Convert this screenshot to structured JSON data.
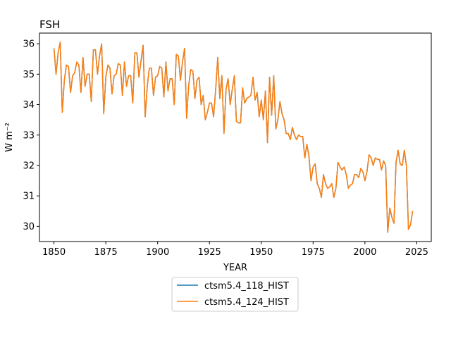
{
  "chart_data": {
    "type": "line",
    "title": "FSH",
    "xlabel": "YEAR",
    "ylabel": "W m⁻²",
    "xlim": [
      1843,
      2032
    ],
    "ylim": [
      29.5,
      36.35
    ],
    "xticks": [
      1850,
      1875,
      1900,
      1925,
      1950,
      1975,
      2000,
      2025
    ],
    "yticks": [
      30,
      31,
      32,
      33,
      34,
      35,
      36
    ],
    "grid": false,
    "legend_placement": "below",
    "x": [
      1850,
      1851,
      1852,
      1853,
      1854,
      1855,
      1856,
      1857,
      1858,
      1859,
      1860,
      1861,
      1862,
      1863,
      1864,
      1865,
      1866,
      1867,
      1868,
      1869,
      1870,
      1871,
      1872,
      1873,
      1874,
      1875,
      1876,
      1877,
      1878,
      1879,
      1880,
      1881,
      1882,
      1883,
      1884,
      1885,
      1886,
      1887,
      1888,
      1889,
      1890,
      1891,
      1892,
      1893,
      1894,
      1895,
      1896,
      1897,
      1898,
      1899,
      1900,
      1901,
      1902,
      1903,
      1904,
      1905,
      1906,
      1907,
      1908,
      1909,
      1910,
      1911,
      1912,
      1913,
      1914,
      1915,
      1916,
      1917,
      1918,
      1919,
      1920,
      1921,
      1922,
      1923,
      1924,
      1925,
      1926,
      1927,
      1928,
      1929,
      1930,
      1931,
      1932,
      1933,
      1934,
      1935,
      1936,
      1937,
      1938,
      1939,
      1940,
      1941,
      1942,
      1943,
      1944,
      1945,
      1946,
      1947,
      1948,
      1949,
      1950,
      1951,
      1952,
      1953,
      1954,
      1955,
      1956,
      1957,
      1958,
      1959,
      1960,
      1961,
      1962,
      1963,
      1964,
      1965,
      1966,
      1967,
      1968,
      1969,
      1970,
      1971,
      1972,
      1973,
      1974,
      1975,
      1976,
      1977,
      1978,
      1979,
      1980,
      1981,
      1982,
      1983,
      1984,
      1985,
      1986,
      1987,
      1988,
      1989,
      1990,
      1991,
      1992,
      1993,
      1994,
      1995,
      1996,
      1997,
      1998,
      1999,
      2000,
      2001,
      2002,
      2003,
      2004,
      2005,
      2006,
      2007,
      2008,
      2009,
      2010,
      2011,
      2012,
      2013,
      2014,
      2015,
      2016,
      2017,
      2018,
      2019,
      2020,
      2021,
      2022,
      2023
    ],
    "series": [
      {
        "name": "ctsm5.4_118_HIST",
        "color": "#1f77b4",
        "values": [
          35.85,
          35.0,
          35.7,
          36.05,
          33.75,
          34.8,
          35.3,
          35.25,
          34.4,
          34.95,
          35.05,
          35.4,
          35.3,
          34.4,
          35.55,
          34.6,
          35.0,
          35.0,
          34.1,
          35.8,
          35.8,
          35.0,
          35.6,
          36.0,
          33.7,
          34.9,
          35.3,
          35.2,
          34.35,
          34.95,
          35.0,
          35.35,
          35.3,
          34.3,
          35.4,
          34.6,
          34.95,
          34.95,
          34.05,
          35.7,
          35.7,
          34.9,
          35.45,
          35.95,
          33.6,
          34.6,
          35.2,
          35.2,
          34.3,
          34.9,
          34.95,
          35.25,
          35.2,
          34.25,
          35.4,
          34.45,
          34.85,
          34.85,
          34.0,
          35.65,
          35.6,
          34.8,
          35.4,
          35.85,
          33.55,
          34.65,
          35.15,
          35.1,
          34.2,
          34.8,
          34.9,
          34.0,
          34.3,
          33.5,
          33.75,
          34.05,
          34.05,
          33.6,
          34.5,
          35.55,
          34.2,
          34.95,
          33.05,
          34.5,
          34.85,
          34.0,
          34.5,
          34.95,
          33.45,
          33.4,
          33.4,
          34.55,
          34.05,
          34.2,
          34.25,
          34.3,
          34.9,
          34.15,
          34.4,
          33.6,
          34.15,
          33.5,
          34.45,
          32.75,
          34.9,
          33.65,
          34.95,
          33.2,
          33.5,
          34.1,
          33.7,
          33.5,
          33.05,
          33.05,
          32.85,
          33.25,
          33.0,
          32.85,
          33.0,
          32.95,
          32.95,
          32.25,
          32.7,
          32.3,
          31.5,
          31.95,
          32.05,
          31.4,
          31.25,
          30.95,
          31.7,
          31.4,
          31.25,
          31.3,
          31.4,
          30.95,
          31.25,
          32.1,
          31.95,
          31.85,
          31.95,
          31.7,
          31.25,
          31.35,
          31.4,
          31.7,
          31.7,
          31.6,
          31.9,
          31.8,
          31.5,
          31.8,
          32.35,
          32.25,
          32.0,
          32.25,
          32.2,
          32.2,
          31.85,
          32.15,
          32.0,
          29.8,
          30.6,
          30.3,
          30.1,
          32.1,
          32.5,
          32.05,
          32.0,
          32.5,
          32.0,
          29.9,
          30.05,
          30.5
        ]
      },
      {
        "name": "ctsm5.4_124_HIST",
        "color": "#ff7f0e",
        "values": [
          35.85,
          35.0,
          35.7,
          36.05,
          33.75,
          34.8,
          35.3,
          35.25,
          34.4,
          34.95,
          35.05,
          35.4,
          35.3,
          34.4,
          35.55,
          34.6,
          35.0,
          35.0,
          34.1,
          35.8,
          35.8,
          35.0,
          35.6,
          36.0,
          33.7,
          34.9,
          35.3,
          35.2,
          34.35,
          34.95,
          35.0,
          35.35,
          35.3,
          34.3,
          35.4,
          34.6,
          34.95,
          34.95,
          34.05,
          35.7,
          35.7,
          34.9,
          35.45,
          35.95,
          33.6,
          34.6,
          35.2,
          35.2,
          34.3,
          34.9,
          34.95,
          35.25,
          35.2,
          34.25,
          35.4,
          34.45,
          34.85,
          34.85,
          34.0,
          35.65,
          35.6,
          34.8,
          35.4,
          35.85,
          33.55,
          34.65,
          35.15,
          35.1,
          34.2,
          34.8,
          34.9,
          34.0,
          34.3,
          33.5,
          33.75,
          34.05,
          34.05,
          33.6,
          34.5,
          35.55,
          34.2,
          34.95,
          33.05,
          34.5,
          34.85,
          34.0,
          34.5,
          34.95,
          33.45,
          33.4,
          33.4,
          34.55,
          34.05,
          34.2,
          34.25,
          34.3,
          34.9,
          34.15,
          34.4,
          33.6,
          34.15,
          33.5,
          34.45,
          32.75,
          34.9,
          33.65,
          34.95,
          33.2,
          33.5,
          34.1,
          33.7,
          33.5,
          33.05,
          33.05,
          32.85,
          33.25,
          33.0,
          32.85,
          33.0,
          32.95,
          32.95,
          32.25,
          32.7,
          32.3,
          31.5,
          31.95,
          32.05,
          31.4,
          31.25,
          30.95,
          31.7,
          31.4,
          31.25,
          31.3,
          31.4,
          30.95,
          31.25,
          32.1,
          31.95,
          31.85,
          31.95,
          31.7,
          31.25,
          31.35,
          31.4,
          31.7,
          31.7,
          31.6,
          31.9,
          31.8,
          31.5,
          31.8,
          32.35,
          32.25,
          32.0,
          32.25,
          32.2,
          32.2,
          31.85,
          32.15,
          32.0,
          29.8,
          30.6,
          30.3,
          30.1,
          32.1,
          32.5,
          32.05,
          32.0,
          32.5,
          32.0,
          29.9,
          30.05,
          30.5
        ]
      }
    ]
  }
}
